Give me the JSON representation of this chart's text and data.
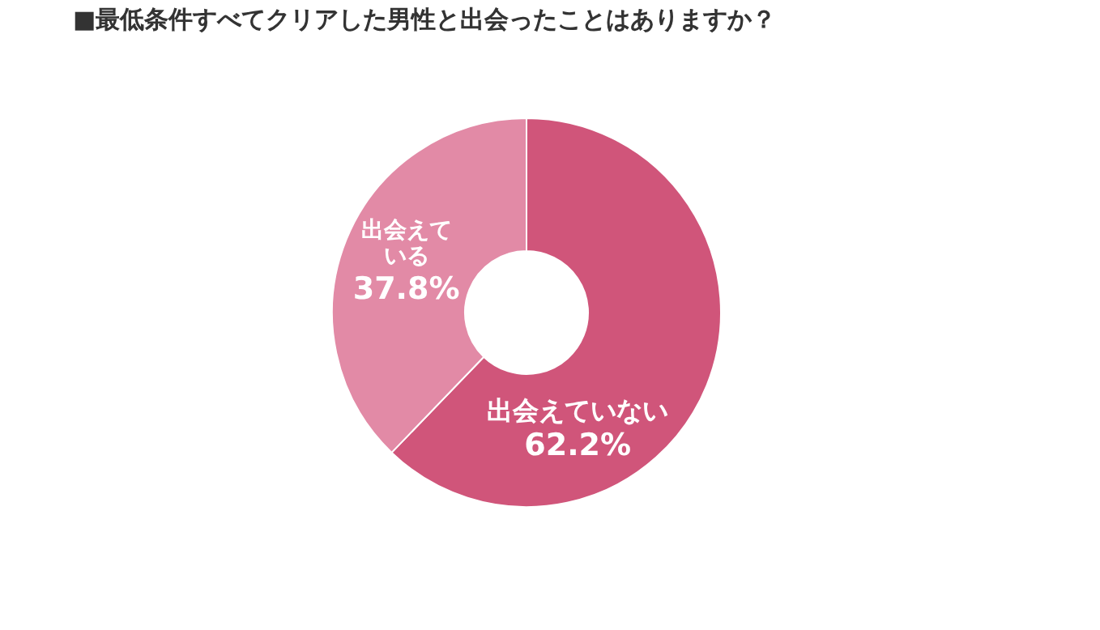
{
  "chart_data": {
    "type": "donut",
    "title": "■最低条件すべてクリアした男性と出会ったことはありますか？",
    "categories": [
      "出会えていない",
      "出会えている"
    ],
    "values": [
      62.2,
      37.8
    ],
    "colors": [
      "#d0557a",
      "#e28aa6"
    ],
    "value_labels": [
      "62.2%",
      "37.8%"
    ],
    "legend": false
  }
}
